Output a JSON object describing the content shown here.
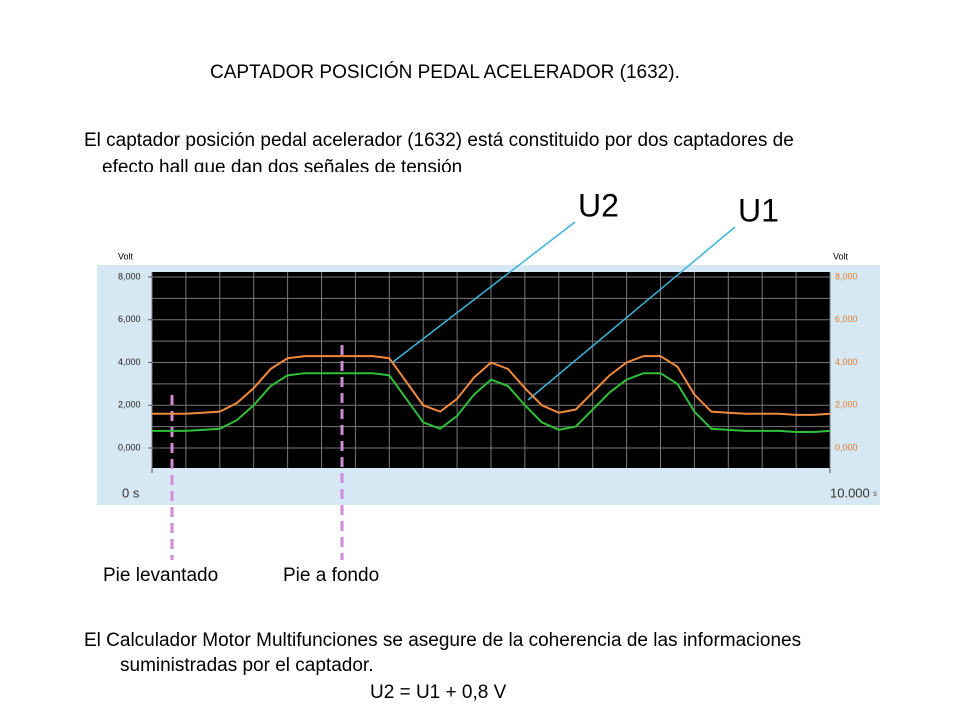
{
  "title": "CAPTADOR POSICIÓN PEDAL ACELERADOR (1632).",
  "intro": {
    "line1": "El captador posición pedal acelerador (1632) está constituido por dos captadores de",
    "line2": "efecto hall que dan dos señales de tensión"
  },
  "scope": {
    "y_label_left": "Volt",
    "y_label_right": "Volt",
    "ylim": [
      0,
      8
    ],
    "yticks": [
      {
        "value": 0,
        "label": "0,000"
      },
      {
        "value": 2,
        "label": "2,000"
      },
      {
        "value": 4,
        "label": "4,000"
      },
      {
        "value": 6,
        "label": "6,000"
      },
      {
        "value": 8,
        "label": "8,000"
      }
    ],
    "xlim": [
      0,
      10
    ],
    "xticks": [
      {
        "value": 0,
        "label": "0 s"
      },
      {
        "value": 10,
        "label": "10.000"
      }
    ],
    "x_unit": "s",
    "x": [
      0,
      0.25,
      0.5,
      0.75,
      1,
      1.25,
      1.5,
      1.75,
      2,
      2.25,
      2.5,
      2.75,
      3,
      3.25,
      3.5,
      3.75,
      4,
      4.25,
      4.5,
      4.75,
      5,
      5.25,
      5.5,
      5.75,
      6,
      6.25,
      6.5,
      6.75,
      7,
      7.25,
      7.5,
      7.75,
      8,
      8.25,
      8.5,
      8.75,
      9,
      9.25,
      9.5,
      9.75,
      10
    ],
    "series": [
      {
        "name": "U2",
        "color": "#f08a3c",
        "values": [
          1.6,
          1.6,
          1.6,
          1.65,
          1.7,
          2.1,
          2.8,
          3.7,
          4.2,
          4.3,
          4.3,
          4.3,
          4.3,
          4.3,
          4.2,
          3.1,
          2.0,
          1.7,
          2.3,
          3.3,
          4.0,
          3.7,
          2.8,
          2.0,
          1.65,
          1.8,
          2.6,
          3.4,
          4.0,
          4.3,
          4.3,
          3.8,
          2.5,
          1.7,
          1.65,
          1.6,
          1.6,
          1.6,
          1.55,
          1.55,
          1.6
        ]
      },
      {
        "name": "U1",
        "color": "#2fbf3a",
        "values": [
          0.8,
          0.8,
          0.8,
          0.85,
          0.9,
          1.3,
          2.0,
          2.9,
          3.4,
          3.5,
          3.5,
          3.5,
          3.5,
          3.5,
          3.4,
          2.3,
          1.2,
          0.9,
          1.5,
          2.5,
          3.2,
          2.9,
          2.0,
          1.2,
          0.85,
          1.0,
          1.8,
          2.6,
          3.2,
          3.5,
          3.5,
          3.0,
          1.7,
          0.9,
          0.85,
          0.8,
          0.8,
          0.8,
          0.75,
          0.75,
          0.8
        ]
      }
    ]
  },
  "markers": {
    "released": "Pie levantado",
    "pressed": "Pie a fondo"
  },
  "outro": {
    "line1": "El Calculador Motor Multifunciones se asegure de la coherencia de las informaciones",
    "line2": "suministradas por el captador."
  },
  "formula": "U2 = U1 + 0,8 V"
}
